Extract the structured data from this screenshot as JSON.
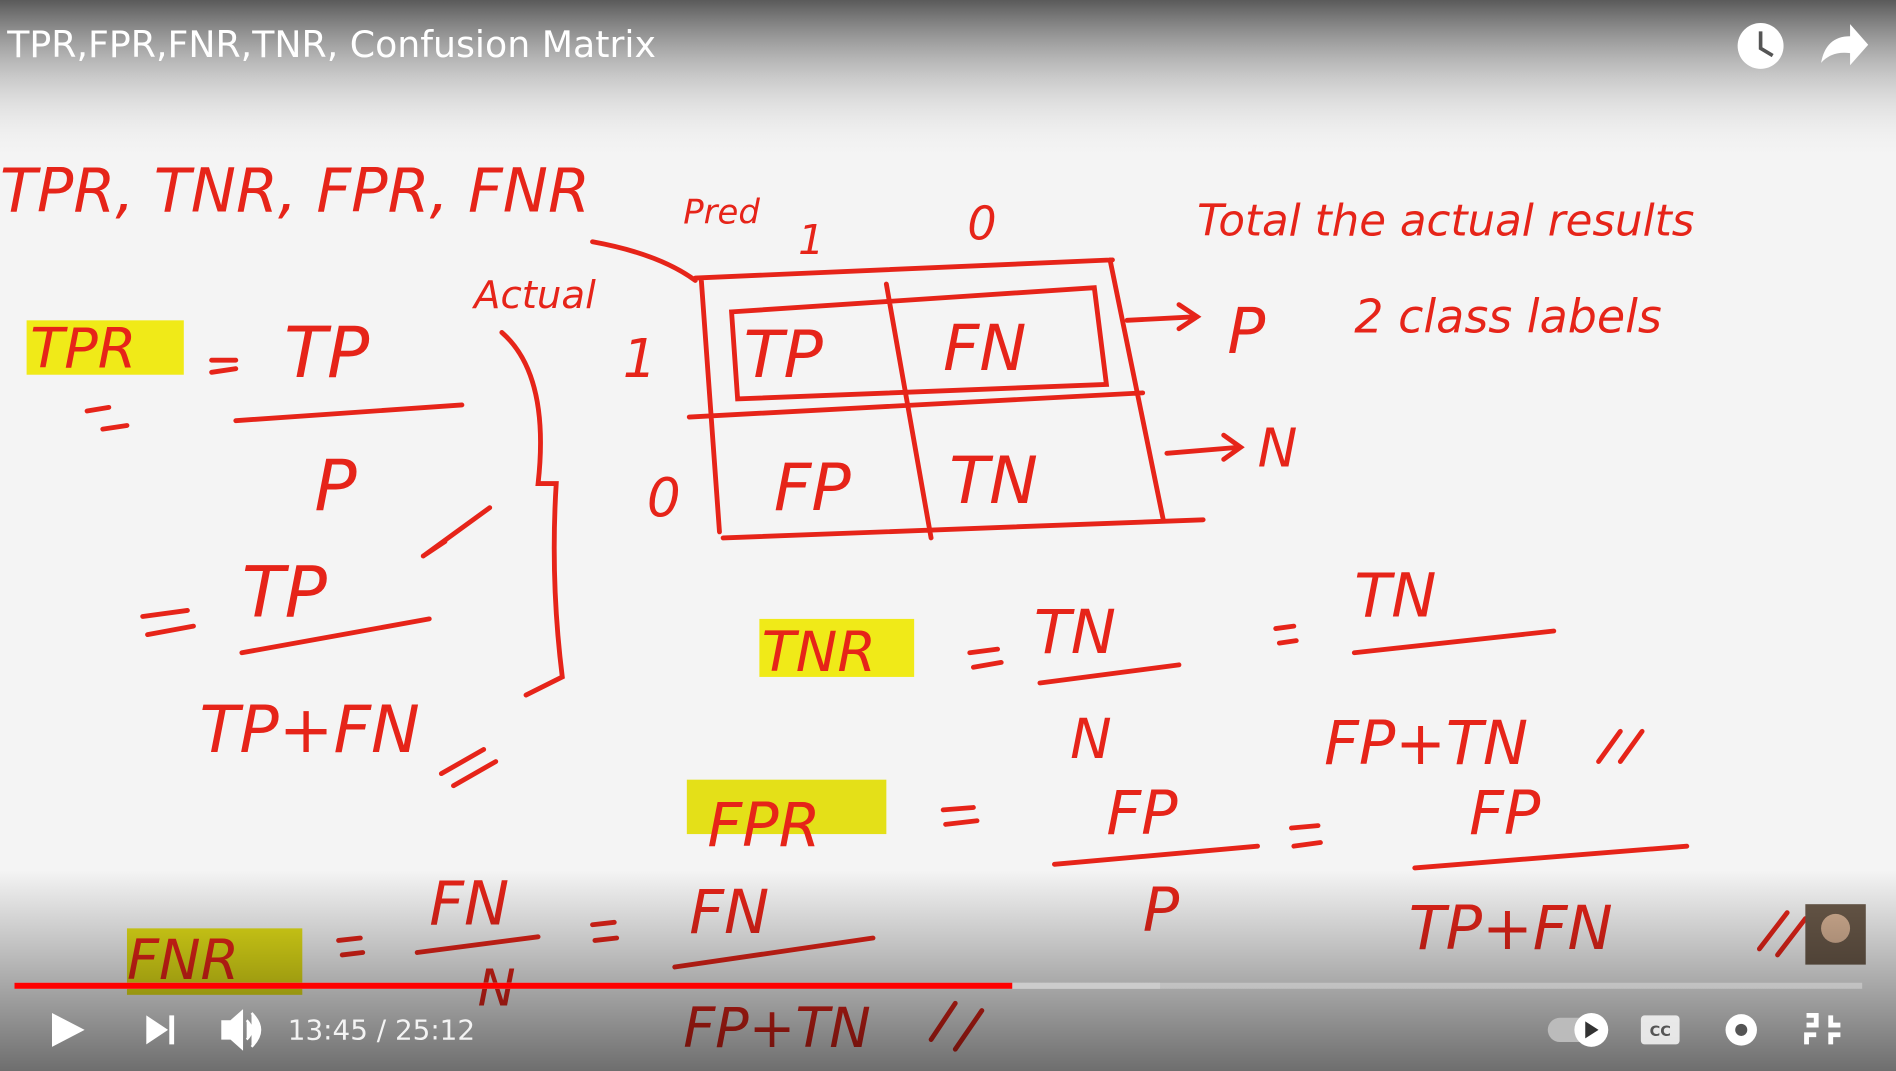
{
  "player": {
    "title": "TPR,FPR,FNR,TNR, Confusion Matrix",
    "time": "13:45 / 25:12",
    "progress": {
      "played": 54,
      "buffered": 62
    }
  },
  "whiteboard": [
    "TPR, TNR, FPR, FNR",
    "Pred",
    "1",
    "0",
    "Actual",
    "Total the actual results",
    "2 class labels",
    "1",
    "0",
    "TP",
    "FN",
    "FP",
    "TN",
    "P",
    "N",
    "TPR",
    "TP",
    "P",
    "TP",
    "TP+FN",
    "TNR",
    "TN",
    "N",
    "TN",
    "FP+TN",
    "FPR",
    "FP",
    "P",
    "FP",
    "TP+FN",
    "FNR",
    "FN",
    "N",
    "FN",
    "FP+TN"
  ]
}
